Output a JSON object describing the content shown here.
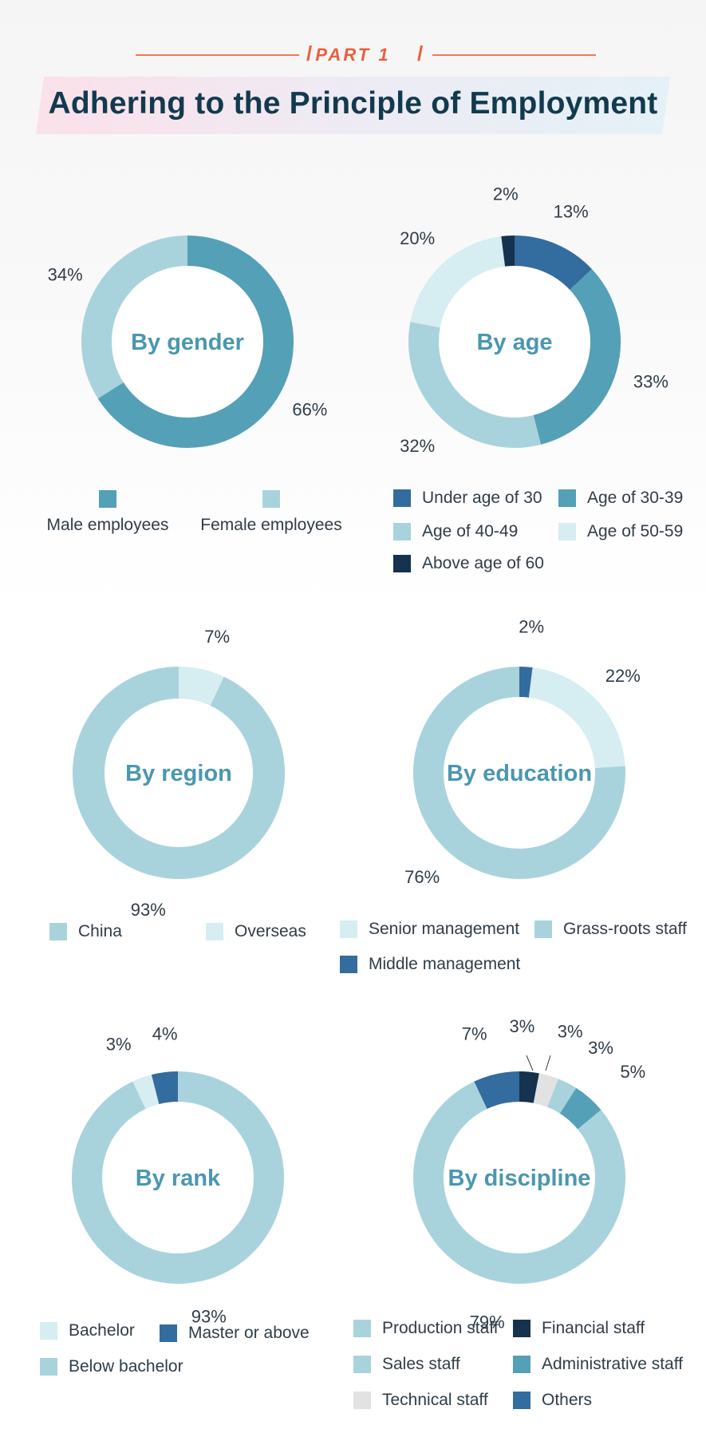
{
  "header": {
    "part_label": "PART 1",
    "title": "Adhering to the Principle of Employment"
  },
  "colors": {
    "accent": "#e8603a",
    "title": "#123a4e",
    "center_label": "#4a97b0",
    "age_under30": "#336c9e",
    "age_30_39": "#54a0b7",
    "age_40_49": "#a9d3dc",
    "age_50_59": "#d6edf2",
    "age_above60": "#15324e",
    "financial": "#15324e",
    "technical": "#e2e2e2",
    "others": "#336c9e"
  },
  "chart_data": [
    {
      "type": "donut",
      "title": "By gender",
      "series": [
        {
          "name": "Male employees",
          "value": 66,
          "label": "66%",
          "color": "#54a0b7"
        },
        {
          "name": "Female employees",
          "value": 34,
          "label": "34%",
          "color": "#a9d3dc"
        }
      ],
      "legend": [
        "Male employees",
        "Female employees"
      ]
    },
    {
      "type": "donut",
      "title": "By age",
      "series": [
        {
          "name": "Under age of 30",
          "value": 13,
          "label": "13%",
          "color": "#336c9e"
        },
        {
          "name": "Age of 30-39",
          "value": 33,
          "label": "33%",
          "color": "#54a0b7"
        },
        {
          "name": "Age of 40-49",
          "value": 32,
          "label": "32%",
          "color": "#a9d3dc"
        },
        {
          "name": "Age of 50-59",
          "value": 20,
          "label": "20%",
          "color": "#d6edf2"
        },
        {
          "name": "Above age of 60",
          "value": 2,
          "label": "2%",
          "color": "#15324e"
        }
      ],
      "legend": [
        "Under age of 30",
        "Age of 30-39",
        "Age of 40-49",
        "Age of 50-59",
        "Above age of 60"
      ]
    },
    {
      "type": "donut",
      "title": "By region",
      "series": [
        {
          "name": "Overseas",
          "value": 7,
          "label": "7%",
          "color": "#d6edf2"
        },
        {
          "name": "China",
          "value": 93,
          "label": "93%",
          "color": "#a9d3dc"
        }
      ],
      "legend": [
        "China",
        "Overseas"
      ]
    },
    {
      "type": "donut",
      "title": "By education",
      "series": [
        {
          "name": "Middle management",
          "value": 2,
          "label": "2%",
          "color": "#336c9e"
        },
        {
          "name": "Senior management",
          "value": 22,
          "label": "22%",
          "color": "#d6edf2"
        },
        {
          "name": "Grass-roots staff",
          "value": 76,
          "label": "76%",
          "color": "#a9d3dc"
        }
      ],
      "legend": [
        "Senior management",
        "Grass-roots staff",
        "Middle management"
      ]
    },
    {
      "type": "donut",
      "title": "By rank",
      "series": [
        {
          "name": "Below bachelor",
          "value": 93,
          "label": "93%",
          "color": "#a9d3dc"
        },
        {
          "name": "Bachelor",
          "value": 3,
          "label": "3%",
          "color": "#d6edf2"
        },
        {
          "name": "Master or above",
          "value": 4,
          "label": "4%",
          "color": "#336c9e"
        }
      ],
      "legend": [
        "Bachelor",
        "Master or above",
        "Below bachelor"
      ]
    },
    {
      "type": "donut",
      "title": "By discipline",
      "series": [
        {
          "name": "Financial staff",
          "value": 3,
          "label": "3%",
          "color": "#15324e"
        },
        {
          "name": "Technical staff",
          "value": 3,
          "label": "3%",
          "color": "#e2e2e2"
        },
        {
          "name": "Sales staff",
          "value": 3,
          "label": "3%",
          "color": "#a9d3dc"
        },
        {
          "name": "Administrative staff",
          "value": 5,
          "label": "5%",
          "color": "#54a0b7"
        },
        {
          "name": "Production staff",
          "value": 79,
          "label": "79%",
          "color": "#a9d3dc"
        },
        {
          "name": "Others",
          "value": 7,
          "label": "7%",
          "color": "#336c9e"
        }
      ],
      "legend": [
        "Production staff",
        "Financial staff",
        "Sales staff",
        "Administrative staff",
        "Technical staff",
        "Others"
      ]
    }
  ]
}
